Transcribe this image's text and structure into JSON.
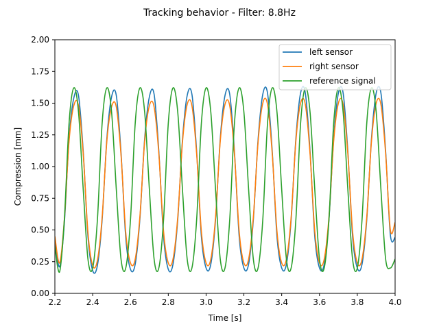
{
  "chart_data": {
    "type": "line",
    "title": "Tracking behavior - Filter: 8.8Hz",
    "xlabel": "Time [s]",
    "ylabel": "Compression [mm]",
    "xlim": [
      2.2,
      4.0
    ],
    "ylim": [
      0.0,
      2.0
    ],
    "xticks": [
      2.2,
      2.4,
      2.6,
      2.8,
      3.0,
      3.2,
      3.4,
      3.6,
      3.8,
      4.0
    ],
    "xtick_labels": [
      "2.2",
      "2.4",
      "2.6",
      "2.8",
      "3.0",
      "3.2",
      "3.4",
      "3.6",
      "3.8",
      "4.0"
    ],
    "yticks": [
      0.0,
      0.25,
      0.5,
      0.75,
      1.0,
      1.25,
      1.5,
      1.75,
      2.0
    ],
    "ytick_labels": [
      "0.00",
      "0.25",
      "0.50",
      "0.75",
      "1.00",
      "1.25",
      "1.50",
      "1.75",
      "2.00"
    ],
    "grid": false,
    "legend_position": "top-right",
    "series": [
      {
        "name": "left sensor",
        "color": "#1f77b4",
        "x": [
          2.2,
          2.225,
          2.25,
          2.275,
          2.3,
          2.325,
          2.35,
          2.375,
          2.4,
          2.425,
          2.45,
          2.475,
          2.5,
          2.525,
          2.55,
          2.575,
          2.6,
          2.625,
          2.65,
          2.675,
          2.7,
          2.725,
          2.75,
          2.775,
          2.8,
          2.825,
          2.85,
          2.875,
          2.9,
          2.925,
          2.95,
          2.975,
          3.0,
          3.025,
          3.05,
          3.075,
          3.1,
          3.125,
          3.15,
          3.175,
          3.2,
          3.225,
          3.25,
          3.275,
          3.3,
          3.325,
          3.35,
          3.375,
          3.4,
          3.425,
          3.45,
          3.475,
          3.5,
          3.525,
          3.55,
          3.575,
          3.6,
          3.625,
          3.65,
          3.675,
          3.7,
          3.725,
          3.75,
          3.775,
          3.8,
          3.825,
          3.85,
          3.875,
          3.9,
          3.925,
          3.95,
          3.975,
          4.0
        ],
        "y": [
          0.42,
          0.21,
          0.55,
          1.22,
          1.54,
          1.56,
          1.12,
          0.45,
          0.18,
          0.22,
          0.58,
          1.22,
          1.55,
          1.56,
          1.11,
          0.44,
          0.19,
          0.23,
          0.59,
          1.22,
          1.55,
          1.57,
          1.12,
          0.45,
          0.19,
          0.23,
          0.58,
          1.21,
          1.56,
          1.57,
          1.12,
          0.45,
          0.2,
          0.23,
          0.58,
          1.22,
          1.56,
          1.57,
          1.12,
          0.45,
          0.2,
          0.23,
          0.58,
          1.21,
          1.57,
          1.58,
          1.12,
          0.45,
          0.2,
          0.23,
          0.58,
          1.22,
          1.58,
          1.58,
          1.12,
          0.45,
          0.2,
          0.23,
          0.58,
          1.22,
          1.58,
          1.58,
          1.12,
          0.45,
          0.2,
          0.23,
          0.58,
          1.22,
          1.58,
          1.58,
          1.12,
          0.46,
          0.44
        ]
      },
      {
        "name": "right sensor",
        "color": "#ff7f0e",
        "x": [
          2.2,
          2.225,
          2.25,
          2.275,
          2.3,
          2.325,
          2.35,
          2.375,
          2.4,
          2.425,
          2.45,
          2.475,
          2.5,
          2.525,
          2.55,
          2.575,
          2.6,
          2.625,
          2.65,
          2.675,
          2.7,
          2.725,
          2.75,
          2.775,
          2.8,
          2.825,
          2.85,
          2.875,
          2.9,
          2.925,
          2.95,
          2.975,
          3.0,
          3.025,
          3.05,
          3.075,
          3.1,
          3.125,
          3.15,
          3.175,
          3.2,
          3.225,
          3.25,
          3.275,
          3.3,
          3.325,
          3.35,
          3.375,
          3.4,
          3.425,
          3.45,
          3.475,
          3.5,
          3.525,
          3.55,
          3.575,
          3.6,
          3.625,
          3.65,
          3.675,
          3.7,
          3.725,
          3.75,
          3.775,
          3.8,
          3.825,
          3.85,
          3.875,
          3.9,
          3.925,
          3.95,
          3.975,
          4.0
        ],
        "y": [
          0.45,
          0.24,
          0.58,
          1.2,
          1.48,
          1.48,
          1.1,
          0.48,
          0.22,
          0.26,
          0.6,
          1.2,
          1.47,
          1.47,
          1.09,
          0.48,
          0.24,
          0.27,
          0.61,
          1.2,
          1.48,
          1.47,
          1.1,
          0.49,
          0.24,
          0.27,
          0.6,
          1.19,
          1.49,
          1.48,
          1.1,
          0.49,
          0.24,
          0.27,
          0.6,
          1.2,
          1.49,
          1.48,
          1.1,
          0.49,
          0.24,
          0.27,
          0.6,
          1.19,
          1.5,
          1.49,
          1.1,
          0.49,
          0.24,
          0.27,
          0.6,
          1.2,
          1.5,
          1.49,
          1.1,
          0.49,
          0.24,
          0.27,
          0.6,
          1.2,
          1.5,
          1.49,
          1.1,
          0.49,
          0.24,
          0.27,
          0.6,
          1.2,
          1.5,
          1.49,
          1.1,
          0.5,
          0.56
        ]
      },
      {
        "name": "reference signal",
        "color": "#2ca02c",
        "x": [
          2.2,
          2.225,
          2.25,
          2.275,
          2.3,
          2.325,
          2.35,
          2.375,
          2.4,
          2.425,
          2.45,
          2.475,
          2.5,
          2.525,
          2.55,
          2.575,
          2.6,
          2.625,
          2.65,
          2.675,
          2.7,
          2.725,
          2.75,
          2.775,
          2.8,
          2.825,
          2.85,
          2.875,
          2.9,
          2.925,
          2.95,
          2.975,
          3.0,
          3.025,
          3.05,
          3.075,
          3.1,
          3.125,
          3.15,
          3.175,
          3.2,
          3.225,
          3.25,
          3.275,
          3.3,
          3.325,
          3.35,
          3.375,
          3.4,
          3.425,
          3.45,
          3.475,
          3.5,
          3.525,
          3.55,
          3.575,
          3.6,
          3.625,
          3.65,
          3.675,
          3.7,
          3.725,
          3.75,
          3.775,
          3.8,
          3.825,
          3.85,
          3.875,
          3.9,
          3.925,
          3.95,
          3.975,
          4.0
        ],
        "y": [
          0.37,
          0.17,
          0.58,
          1.34,
          1.62,
          1.43,
          0.82,
          0.27,
          0.2,
          0.58,
          1.34,
          1.62,
          1.43,
          0.82,
          0.27,
          0.2,
          0.58,
          1.34,
          1.62,
          1.43,
          0.82,
          0.27,
          0.2,
          0.58,
          1.34,
          1.62,
          1.43,
          0.82,
          0.27,
          0.2,
          0.58,
          1.34,
          1.62,
          1.43,
          0.82,
          0.27,
          0.2,
          0.58,
          1.34,
          1.62,
          1.43,
          0.82,
          0.27,
          0.2,
          0.58,
          1.34,
          1.62,
          1.43,
          0.82,
          0.27,
          0.2,
          0.58,
          1.34,
          1.62,
          1.43,
          0.82,
          0.27,
          0.2,
          0.58,
          1.34,
          1.62,
          1.43,
          0.82,
          0.27,
          0.2,
          0.58,
          1.34,
          1.62,
          1.43,
          0.82,
          0.27,
          0.2,
          0.27
        ]
      }
    ]
  }
}
